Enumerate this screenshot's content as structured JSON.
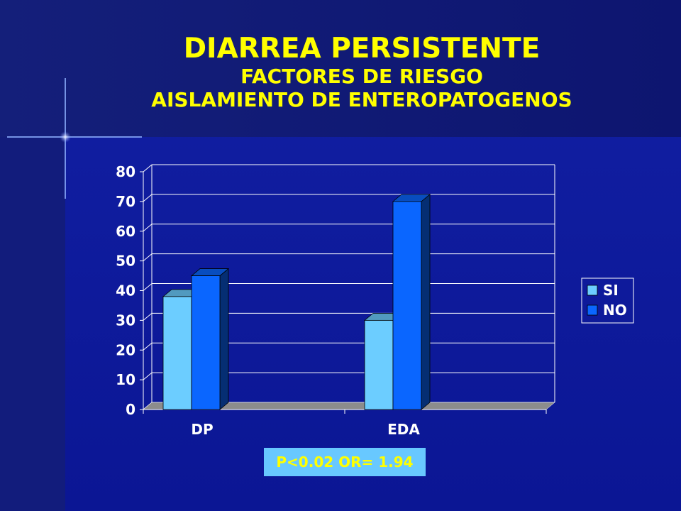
{
  "slide": {
    "title": "DIARREA PERSISTENTE",
    "subtitle1": "FACTORES DE RIESGO",
    "subtitle2": "AISLAMIENTO DE ENTEROPATOGENOS",
    "stat_note": "P<0.02 OR= 1.94"
  },
  "colors": {
    "background": "#0f1a86",
    "title": "#ffff00",
    "series_si": "#6ccdff",
    "series_no": "#0a66ff",
    "floor": "#8c8c8c"
  },
  "chart_data": {
    "type": "bar",
    "categories": [
      "DP",
      "EDA"
    ],
    "series": [
      {
        "name": "SI",
        "values": [
          38,
          30
        ]
      },
      {
        "name": "NO",
        "values": [
          45,
          70
        ]
      }
    ],
    "ylim": [
      0,
      80
    ],
    "yticks": [
      0,
      10,
      20,
      30,
      40,
      50,
      60,
      70,
      80
    ],
    "grid": true,
    "legend": "right",
    "style": "3d-clustered-column"
  }
}
